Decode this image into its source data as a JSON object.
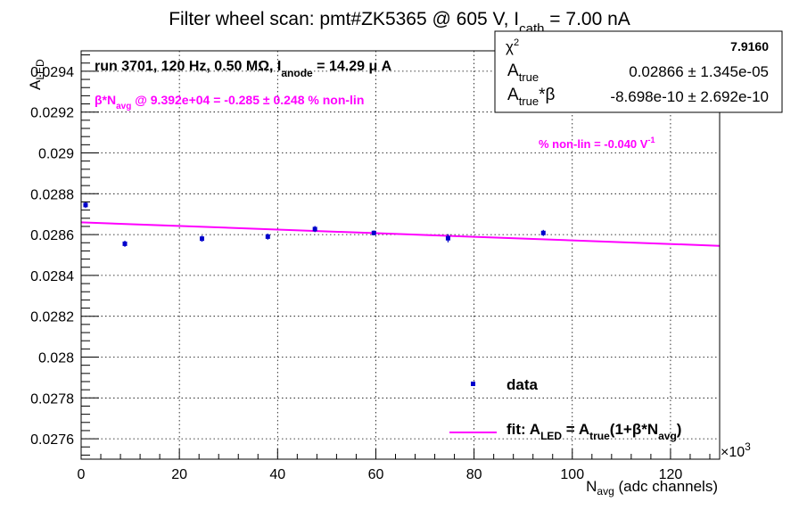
{
  "chart_data": {
    "type": "scatter",
    "title": {
      "prefix": "Filter wheel scan: pmt#ZK5365 @   605 V, I",
      "sub": "cath",
      "suffix": " = 7.00 nA"
    },
    "xlabel": {
      "main": "N",
      "sub": "avg",
      "rest": " (adc channels)"
    },
    "ylabel": {
      "main": "A",
      "sub": "LED"
    },
    "x_multiplier": "×10",
    "x_multiplier_exp": "3",
    "xlim": [
      0,
      130
    ],
    "ylim": [
      0.0275,
      0.0295
    ],
    "x_ticks": [
      0,
      20,
      40,
      60,
      80,
      100,
      120
    ],
    "x_tick_labels": [
      "0",
      "20",
      "40",
      "60",
      "80",
      "100",
      "120"
    ],
    "y_ticks": [
      0.0276,
      0.0278,
      0.028,
      0.0282,
      0.0284,
      0.0286,
      0.0288,
      0.029,
      0.0292,
      0.0294
    ],
    "y_tick_labels": [
      "0.0276",
      "0.0278",
      "0.028",
      "0.0282",
      "0.0284",
      "0.0286",
      "0.0288",
      "0.029",
      "0.0292",
      "0.0294"
    ],
    "grid": true,
    "series": [
      {
        "name": "data",
        "kind": "points",
        "color": "#0000cc",
        "x": [
          0.9,
          8.9,
          24.6,
          38.0,
          47.6,
          59.6,
          74.7,
          94.1
        ],
        "y": [
          0.028745,
          0.028555,
          0.02858,
          0.02859,
          0.028627,
          0.028608,
          0.028582,
          0.028608
        ],
        "yerr": [
          1.5e-05,
          1.5e-05,
          1.5e-05,
          1.5e-05,
          1.5e-05,
          1.2e-05,
          2e-05,
          1.5e-05
        ]
      },
      {
        "name": "fit",
        "kind": "line",
        "color": "#ff00ff",
        "x": [
          0,
          130
        ],
        "y": [
          0.02866,
          0.028545
        ]
      }
    ],
    "annotations": {
      "run": {
        "prefix": "run 3701, 120 Hz, 0.50 MΩ, I",
        "sub": "anode",
        "suffix": " = 14.29 μ A"
      },
      "nonlin_beta": {
        "prefix": "β*N",
        "sub": "avg",
        "suffix": " @ 9.392e+04 = -0.285 ± 0.248 % non-lin"
      },
      "nonlin_v": {
        "main": "% non-lin = -0.040 V",
        "sup": "-1"
      }
    },
    "stats_box": {
      "chi2_label": "χ",
      "chi2_sup": "2",
      "chi2_value": "7.9160",
      "atrue_label": "A",
      "atrue_sub": "true",
      "atrue_value": "0.02866 ± 1.345e-05",
      "atb_label": "A",
      "atb_sub": "true",
      "atb_suffix": "*β",
      "atb_value": "-8.698e-10 ± 2.692e-10"
    },
    "legend": {
      "position": "bottom-right",
      "data_label": "data",
      "fit_prefix": "fit: A",
      "fit_sub1": "LED",
      "fit_mid": " = A",
      "fit_sub2": "true",
      "fit_mid2": "(1+β*N",
      "fit_sub3": "avg",
      "fit_end": ")"
    },
    "colors": {
      "data": "#0000cc",
      "fit": "#ff00ff",
      "annotation": "#ff00ff",
      "grid": "#000000"
    }
  }
}
